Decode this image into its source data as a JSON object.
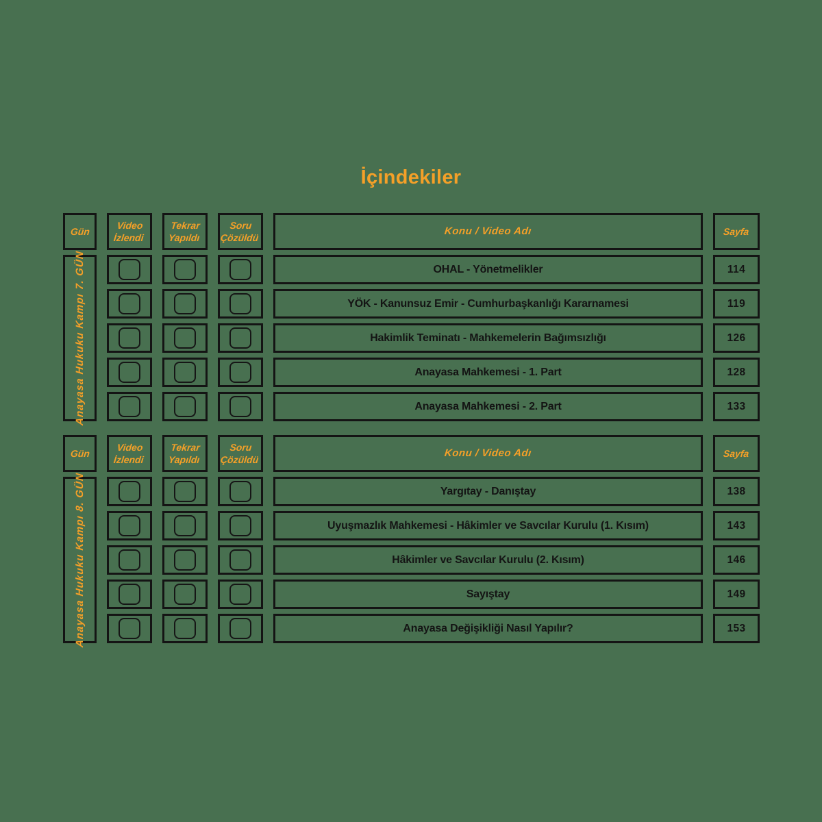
{
  "page": {
    "title": "İçindekiler",
    "background_color": "#487050",
    "accent_color": "#F5A028",
    "line_color": "#141414"
  },
  "columns": {
    "gun": "Gün",
    "video": "Video\nİzlendi",
    "tekrar": "Tekrar\nYapıldı",
    "soru": "Soru\nÇözüldü",
    "konu": "Konu / Video Adı",
    "sayfa": "Sayfa"
  },
  "tables": [
    {
      "day_label": "Anayasa Hukuku Kampı 7. GÜN",
      "rows": [
        {
          "topic": "OHAL - Yönetmelikler",
          "page": "114"
        },
        {
          "topic": "YÖK - Kanunsuz Emir - Cumhurbaşkanlığı Kararnamesi",
          "page": "119"
        },
        {
          "topic": "Hakimlik Teminatı - Mahkemelerin Bağımsızlığı",
          "page": "126"
        },
        {
          "topic": "Anayasa Mahkemesi - 1. Part",
          "page": "128"
        },
        {
          "topic": "Anayasa Mahkemesi - 2. Part",
          "page": "133"
        }
      ]
    },
    {
      "day_label": "Anayasa Hukuku Kampı 8. GÜN",
      "rows": [
        {
          "topic": "Yargıtay - Danıştay",
          "page": "138"
        },
        {
          "topic": "Uyuşmazlık Mahkemesi - Hâkimler ve Savcılar Kurulu (1. Kısım)",
          "page": "143"
        },
        {
          "topic": "Hâkimler ve Savcılar Kurulu (2. Kısım)",
          "page": "146"
        },
        {
          "topic": "Sayıştay",
          "page": "149"
        },
        {
          "topic": "Anayasa Değişikliği Nasıl Yapılır?",
          "page": "153"
        }
      ]
    }
  ]
}
